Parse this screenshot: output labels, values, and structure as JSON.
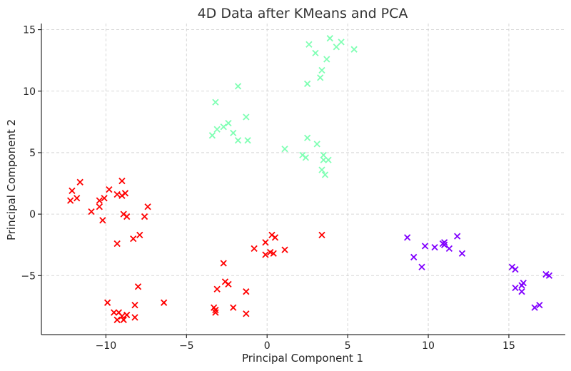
{
  "chart_data": {
    "type": "scatter",
    "title": "4D Data after KMeans and PCA",
    "xlabel": "Principal Component 1",
    "ylabel": "Principal Component 2",
    "xlim": [
      -14,
      18.5
    ],
    "ylim": [
      -9.8,
      15.5
    ],
    "xticks": [
      -10,
      -5,
      0,
      5,
      10,
      15
    ],
    "yticks": [
      -5,
      0,
      5,
      10,
      15
    ],
    "grid": true,
    "marker": "x",
    "series": [
      {
        "name": "cluster-red",
        "color": "#ff0000",
        "points": [
          [
            -12.2,
            1.1
          ],
          [
            -12.1,
            1.9
          ],
          [
            -11.8,
            1.3
          ],
          [
            -11.6,
            2.6
          ],
          [
            -10.9,
            0.2
          ],
          [
            -10.4,
            1.1
          ],
          [
            -10.4,
            0.6
          ],
          [
            -10.1,
            1.3
          ],
          [
            -10.2,
            -0.5
          ],
          [
            -9.8,
            2.0
          ],
          [
            -9.3,
            1.6
          ],
          [
            -9.0,
            1.5
          ],
          [
            -9.0,
            2.7
          ],
          [
            -8.8,
            1.7
          ],
          [
            -8.9,
            0.0
          ],
          [
            -8.7,
            -0.2
          ],
          [
            -9.3,
            -2.4
          ],
          [
            -8.3,
            -2.0
          ],
          [
            -7.9,
            -1.7
          ],
          [
            -7.6,
            -0.2
          ],
          [
            -7.4,
            0.6
          ],
          [
            -9.9,
            -7.2
          ],
          [
            -9.5,
            -8.0
          ],
          [
            -9.2,
            -8.0
          ],
          [
            -9.3,
            -8.6
          ],
          [
            -9.0,
            -8.3
          ],
          [
            -8.9,
            -8.6
          ],
          [
            -8.7,
            -8.2
          ],
          [
            -8.2,
            -8.4
          ],
          [
            -8.2,
            -7.4
          ],
          [
            -8.0,
            -5.9
          ],
          [
            -6.4,
            -7.2
          ],
          [
            -3.3,
            -7.6
          ],
          [
            -3.2,
            -7.8
          ],
          [
            -3.1,
            -6.1
          ],
          [
            -3.2,
            -8.0
          ],
          [
            -2.7,
            -4.0
          ],
          [
            -2.6,
            -5.5
          ],
          [
            -2.4,
            -5.7
          ],
          [
            -2.1,
            -7.6
          ],
          [
            -1.3,
            -6.3
          ],
          [
            -1.3,
            -8.1
          ],
          [
            -0.8,
            -2.8
          ],
          [
            -0.1,
            -2.3
          ],
          [
            -0.1,
            -3.3
          ],
          [
            0.2,
            -3.1
          ],
          [
            0.3,
            -1.7
          ],
          [
            0.4,
            -3.2
          ],
          [
            0.5,
            -1.9
          ],
          [
            1.1,
            -2.9
          ],
          [
            3.4,
            -1.7
          ]
        ]
      },
      {
        "name": "cluster-green",
        "color": "#80ffb4",
        "points": [
          [
            -3.4,
            6.4
          ],
          [
            -3.2,
            9.1
          ],
          [
            -3.1,
            6.9
          ],
          [
            -2.7,
            7.1
          ],
          [
            -2.4,
            7.4
          ],
          [
            -2.1,
            6.6
          ],
          [
            -1.8,
            10.4
          ],
          [
            -1.8,
            6.0
          ],
          [
            -1.3,
            7.9
          ],
          [
            -1.2,
            6.0
          ],
          [
            1.1,
            5.3
          ],
          [
            2.2,
            4.8
          ],
          [
            2.4,
            4.6
          ],
          [
            2.5,
            6.2
          ],
          [
            3.1,
            5.7
          ],
          [
            3.4,
            3.6
          ],
          [
            3.5,
            4.8
          ],
          [
            3.5,
            4.4
          ],
          [
            3.6,
            3.2
          ],
          [
            3.8,
            4.4
          ],
          [
            2.5,
            10.6
          ],
          [
            3.3,
            11.1
          ],
          [
            3.4,
            11.7
          ],
          [
            2.6,
            13.8
          ],
          [
            3.0,
            13.1
          ],
          [
            3.7,
            12.6
          ],
          [
            3.9,
            14.3
          ],
          [
            4.3,
            13.6
          ],
          [
            4.6,
            14.0
          ],
          [
            5.4,
            13.4
          ]
        ]
      },
      {
        "name": "cluster-purple",
        "color": "#8000ff",
        "points": [
          [
            8.7,
            -1.9
          ],
          [
            9.1,
            -3.5
          ],
          [
            9.6,
            -4.3
          ],
          [
            9.8,
            -2.6
          ],
          [
            10.4,
            -2.7
          ],
          [
            10.9,
            -2.4
          ],
          [
            11.0,
            -2.3
          ],
          [
            11.0,
            -2.5
          ],
          [
            11.3,
            -2.8
          ],
          [
            11.8,
            -1.8
          ],
          [
            12.1,
            -3.2
          ],
          [
            15.2,
            -4.3
          ],
          [
            15.4,
            -4.5
          ],
          [
            15.4,
            -6.0
          ],
          [
            15.8,
            -5.8
          ],
          [
            15.8,
            -6.3
          ],
          [
            15.9,
            -5.6
          ],
          [
            16.6,
            -7.6
          ],
          [
            16.9,
            -7.4
          ],
          [
            17.3,
            -4.9
          ],
          [
            17.5,
            -5.0
          ]
        ]
      }
    ]
  }
}
